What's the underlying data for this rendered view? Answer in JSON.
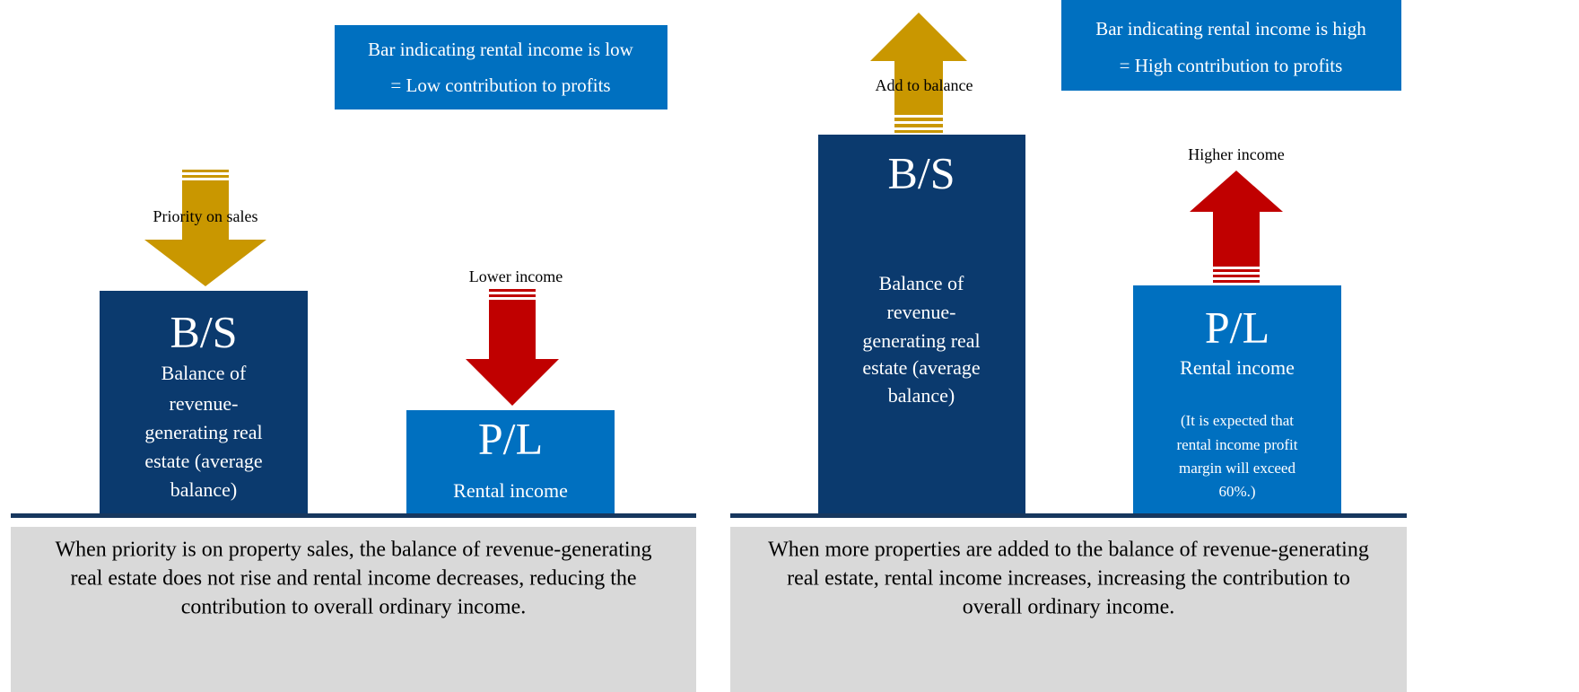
{
  "left": {
    "callout": [
      "Bar indicating rental income is low",
      "= Low contribution to profits"
    ],
    "bs_arrow_label": "Priority on sales",
    "pl_arrow_label": "Lower income",
    "bs": {
      "title": "B/S",
      "lines": [
        "Balance of",
        "revenue-",
        "generating real",
        "estate (average",
        "balance)"
      ]
    },
    "pl": {
      "title": "P/L",
      "subtitle": "Rental income"
    },
    "caption": [
      "When priority is on property sales, the balance of revenue-generating",
      "real estate does not rise and rental income decreases, reducing the",
      "contribution to overall ordinary income."
    ]
  },
  "right": {
    "callout": [
      "Bar indicating rental income is high",
      "= High contribution to profits"
    ],
    "bs_arrow_label": "Add to balance",
    "pl_arrow_label": "Higher income",
    "bs": {
      "title": "B/S",
      "lines": [
        "Balance of",
        "revenue-",
        "generating real",
        "estate (average",
        "balance)"
      ]
    },
    "pl": {
      "title": "P/L",
      "subtitle": "Rental income",
      "note": [
        "(It is expected that",
        "rental income profit",
        "margin will exceed",
        "60%.)"
      ]
    },
    "caption": [
      "When more properties are added to the balance of revenue-generating",
      "real estate, rental income increases, increasing the contribution to",
      "overall ordinary income."
    ]
  }
}
